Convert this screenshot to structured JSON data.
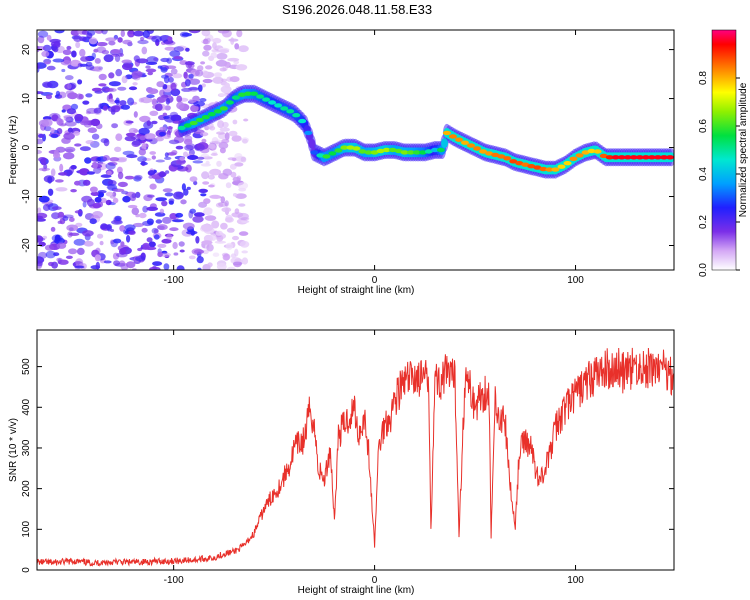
{
  "title": "S196.2026.048.11.58.E33",
  "colors": {
    "snr_line": "#e8302a",
    "frame": "#000000",
    "background": "#ffffff"
  },
  "chart_data": [
    {
      "type": "heatmap",
      "xlabel": "Height of straight line (km)",
      "ylabel": "Frequency (Hz)",
      "xlim": [
        -168,
        149
      ],
      "ylim": [
        -25,
        24
      ],
      "x_ticks": [
        -100,
        0,
        100
      ],
      "y_ticks": [
        -20,
        -10,
        0,
        10,
        20
      ],
      "colorbar": {
        "label": "Normalized spectral amplitude",
        "range": [
          0.0,
          1.0
        ],
        "ticks": [
          0.0,
          0.2,
          0.4,
          0.6,
          0.8
        ],
        "tick_labels": [
          "0.0",
          "0.2",
          "0.4",
          "0.6",
          "0.8"
        ]
      },
      "ridge": {
        "x": [
          -96,
          -90,
          -80,
          -75,
          -70,
          -65,
          -60,
          -55,
          -50,
          -45,
          -40,
          -35,
          -32,
          -30,
          -25,
          -20,
          -15,
          -10,
          -5,
          0,
          5,
          10,
          15,
          20,
          25,
          30,
          34,
          36,
          40,
          45,
          50,
          55,
          60,
          65,
          70,
          75,
          80,
          85,
          90,
          95,
          100,
          105,
          110,
          115,
          120,
          130,
          140,
          148
        ],
        "freq": [
          4,
          5,
          7,
          8,
          10,
          11,
          11,
          10,
          9,
          8,
          7,
          5,
          2,
          -1,
          -2,
          -1,
          0,
          0,
          -1,
          -1,
          -0.5,
          -0.5,
          -1,
          -1,
          -1,
          -0.5,
          -0.5,
          3,
          2,
          1,
          0,
          -1,
          -1.5,
          -2,
          -3,
          -3.5,
          -4,
          -4.5,
          -4.5,
          -3.5,
          -2,
          -1,
          -0.5,
          -2,
          -2,
          -2,
          -2,
          -2
        ],
        "amplitude": [
          0.5,
          0.6,
          0.55,
          0.6,
          0.5,
          0.6,
          0.55,
          0.5,
          0.45,
          0.5,
          0.5,
          0.45,
          0.3,
          0.3,
          0.6,
          0.55,
          0.65,
          0.7,
          0.6,
          0.65,
          0.7,
          0.6,
          0.65,
          0.6,
          0.55,
          0.4,
          0.6,
          0.8,
          0.85,
          0.8,
          0.85,
          0.8,
          0.85,
          0.85,
          0.9,
          0.85,
          0.9,
          0.85,
          0.8,
          0.75,
          0.85,
          0.8,
          0.75,
          0.9,
          0.95,
          0.95,
          0.95,
          0.95
        ]
      },
      "noise_region_x": [
        -168,
        -70
      ],
      "noise_amplitude": 0.2
    },
    {
      "type": "line",
      "xlabel": "Height of straight line (km)",
      "ylabel": "SNR (10 * v/v)",
      "xlim": [
        -168,
        149
      ],
      "ylim": [
        0,
        590
      ],
      "x_ticks": [
        -100,
        0,
        100
      ],
      "y_ticks": [
        0,
        100,
        200,
        300,
        400,
        500
      ],
      "series": [
        {
          "name": "SNR",
          "x": [
            -168,
            -160,
            -150,
            -140,
            -130,
            -120,
            -110,
            -100,
            -90,
            -80,
            -75,
            -70,
            -65,
            -60,
            -55,
            -50,
            -48,
            -45,
            -42,
            -40,
            -35,
            -32,
            -30,
            -28,
            -25,
            -22,
            -20,
            -18,
            -15,
            -12,
            -10,
            -8,
            -5,
            -3,
            0,
            2,
            5,
            8,
            10,
            12,
            15,
            18,
            20,
            22,
            25,
            27,
            28,
            30,
            32,
            35,
            38,
            40,
            42,
            45,
            48,
            50,
            52,
            55,
            57,
            58,
            60,
            62,
            65,
            68,
            70,
            72,
            75,
            78,
            80,
            82,
            85,
            88,
            90,
            95,
            100,
            105,
            110,
            115,
            120,
            125,
            130,
            135,
            140,
            145,
            149
          ],
          "values": [
            20,
            18,
            22,
            17,
            20,
            19,
            21,
            22,
            25,
            30,
            40,
            45,
            60,
            90,
            150,
            190,
            200,
            230,
            260,
            300,
            320,
            400,
            350,
            250,
            220,
            300,
            120,
            330,
            360,
            380,
            400,
            330,
            380,
            290,
            60,
            300,
            360,
            380,
            420,
            440,
            460,
            470,
            480,
            470,
            470,
            460,
            100,
            470,
            460,
            480,
            470,
            470,
            90,
            470,
            440,
            400,
            420,
            440,
            430,
            80,
            420,
            380,
            360,
            180,
            110,
            290,
            320,
            300,
            250,
            220,
            250,
            300,
            350,
            400,
            430,
            460,
            480,
            490,
            500,
            480,
            500,
            490,
            500,
            490,
            480
          ]
        }
      ]
    }
  ]
}
